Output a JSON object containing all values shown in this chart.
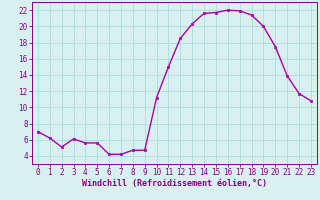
{
  "x": [
    0,
    1,
    2,
    3,
    4,
    5,
    6,
    7,
    8,
    9,
    10,
    11,
    12,
    13,
    14,
    15,
    16,
    17,
    18,
    19,
    20,
    21,
    22,
    23
  ],
  "y": [
    7,
    6.2,
    5.1,
    6.1,
    5.6,
    5.6,
    4.2,
    4.2,
    4.7,
    4.7,
    11.2,
    15.0,
    18.5,
    20.3,
    21.6,
    21.7,
    22.0,
    21.9,
    21.4,
    20.0,
    17.5,
    13.9,
    11.7,
    10.8
  ],
  "line_color": "#aa00aa",
  "marker": "s",
  "marker_size": 2,
  "bg_color": "#d8f0f0",
  "grid_color": "#aadddd",
  "xlabel": "Windchill (Refroidissement éolien,°C)",
  "xlabel_fontsize": 6.0,
  "xlim": [
    -0.5,
    23.5
  ],
  "ylim": [
    3,
    23
  ],
  "yticks": [
    4,
    6,
    8,
    10,
    12,
    14,
    16,
    18,
    20,
    22
  ],
  "xticks": [
    0,
    1,
    2,
    3,
    4,
    5,
    6,
    7,
    8,
    9,
    10,
    11,
    12,
    13,
    14,
    15,
    16,
    17,
    18,
    19,
    20,
    21,
    22,
    23
  ],
  "tick_fontsize": 5.5,
  "spine_color": "#880088",
  "line_width": 1.0
}
